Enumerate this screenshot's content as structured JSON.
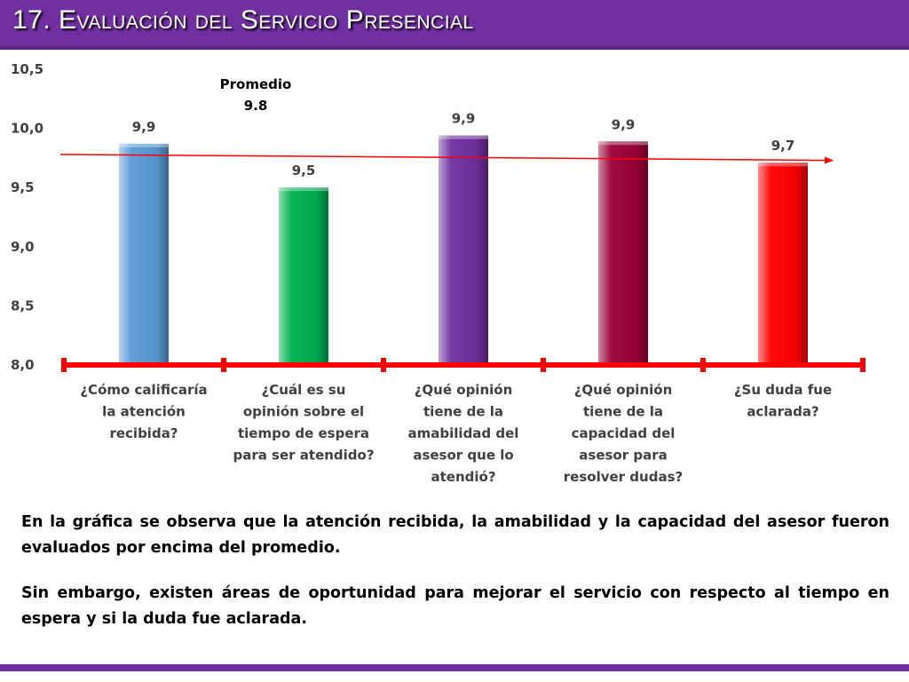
{
  "header": {
    "title": "17. Evaluación del Servicio Presencial"
  },
  "chart_data": {
    "type": "bar",
    "categories": [
      [
        "¿Cómo calificaría",
        "la atención",
        "recibida?"
      ],
      [
        "¿Cuál es su",
        "opinión sobre el",
        "tiempo de espera",
        "para ser atendido?"
      ],
      [
        "¿Qué opinión",
        "tiene de la",
        "amabilidad del",
        "asesor que lo",
        "atendió?"
      ],
      [
        "¿Qué opinión",
        "tiene de la",
        "capacidad del",
        "asesor para",
        "resolver dudas?"
      ],
      [
        "¿Su duda fue",
        "aclarada?"
      ]
    ],
    "values": [
      9.87,
      9.5,
      9.94,
      9.89,
      9.71
    ],
    "value_labels": [
      "9,9",
      "9,5",
      "9,9",
      "9,9",
      "9,7"
    ],
    "bar_colors": [
      "#5b9bd5",
      "#00b050",
      "#7030a0",
      "#9b0038",
      "#ff0000"
    ],
    "ylim": [
      8.0,
      10.5
    ],
    "yticks": [
      8.0,
      8.5,
      9.0,
      9.5,
      10.0,
      10.5
    ],
    "ytick_labels": [
      "8,0",
      "8,5",
      "9,0",
      "9,5",
      "10,0",
      "10,5"
    ],
    "average": {
      "label_line1": "Promedio",
      "label_line2": "9.8",
      "line_start_value": 9.78,
      "line_end_value": 9.73,
      "color": "#ff0000"
    },
    "axis_color": "#ff0000",
    "grid": false,
    "legend": "none"
  },
  "body": {
    "paragraph1": "En la gráfica se observa que la atención recibida, la amabilidad y la capacidad del asesor fueron evaluados por encima del promedio.",
    "paragraph2": "Sin embargo, existen áreas de oportunidad para mejorar el servicio con respecto al tiempo en espera y si la duda fue aclarada."
  }
}
